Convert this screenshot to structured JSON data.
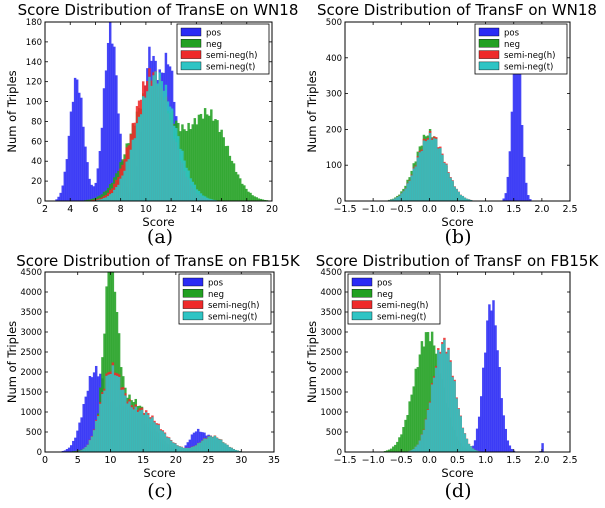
{
  "colors": {
    "pos": "#2b2bf5",
    "neg": "#22a022",
    "semi_neg_h": "#ee2a2a",
    "semi_neg_t": "#2ec4c4"
  },
  "chart_data": [
    {
      "type": "histogram",
      "title": "Score Distribution of TransE on WN18",
      "caption": "(a)",
      "xlabel": "Score",
      "ylabel": "Num of Triples",
      "xlim": [
        2,
        20
      ],
      "ylim": [
        0,
        180
      ],
      "xticks": [
        "2",
        "4",
        "6",
        "8",
        "10",
        "12",
        "14",
        "16",
        "18",
        "20"
      ],
      "yticks": [
        "0",
        "20",
        "40",
        "60",
        "80",
        "100",
        "120",
        "140",
        "160",
        "180"
      ],
      "legend": "top-right",
      "series": [
        {
          "name": "pos",
          "color": "#2b2bf5",
          "peaks": [
            {
              "center": 4.5,
              "height": 122,
              "sd": 0.55
            },
            {
              "center": 7.2,
              "height": 172,
              "sd": 0.55
            },
            {
              "center": 10.3,
              "height": 142,
              "sd": 0.6
            },
            {
              "center": 11.8,
              "height": 135,
              "sd": 0.6
            }
          ]
        },
        {
          "name": "neg",
          "color": "#22a022",
          "peaks": [
            {
              "center": 10.5,
              "height": 112,
              "sd": 1.7
            },
            {
              "center": 15.0,
              "height": 85,
              "sd": 1.5
            }
          ]
        },
        {
          "name": "semi-neg(h)",
          "color": "#ee2a2a",
          "peaks": [
            {
              "center": 10.5,
              "height": 128,
              "sd": 1.5
            }
          ]
        },
        {
          "name": "semi-neg(t)",
          "color": "#2ec4c4",
          "peaks": [
            {
              "center": 10.8,
              "height": 126,
              "sd": 1.5
            }
          ]
        }
      ]
    },
    {
      "type": "histogram",
      "title": "Score Distribution of TransF on WN18",
      "caption": "(b)",
      "xlabel": "Score",
      "ylabel": "Num of Triples",
      "xlim": [
        -1.5,
        2.5
      ],
      "ylim": [
        0,
        500
      ],
      "xticks": [
        "−1.5",
        "−1.0",
        "−0.5",
        "0.0",
        "0.5",
        "1.0",
        "1.5",
        "2.0",
        "2.5"
      ],
      "yticks": [
        "0",
        "100",
        "200",
        "300",
        "400",
        "500"
      ],
      "legend": "top-right",
      "series": [
        {
          "name": "pos",
          "color": "#2b2bf5",
          "peaks": [
            {
              "center": 1.55,
              "height": 460,
              "sd": 0.08
            }
          ]
        },
        {
          "name": "neg",
          "color": "#22a022",
          "peaks": [
            {
              "center": 0.0,
              "height": 190,
              "sd": 0.25
            }
          ]
        },
        {
          "name": "semi-neg(h)",
          "color": "#ee2a2a",
          "peaks": [
            {
              "center": 0.02,
              "height": 185,
              "sd": 0.25
            }
          ]
        },
        {
          "name": "semi-neg(t)",
          "color": "#2ec4c4",
          "peaks": [
            {
              "center": 0.02,
              "height": 180,
              "sd": 0.25
            }
          ]
        }
      ]
    },
    {
      "type": "histogram",
      "title": "Score Distribution of TransE on FB15K",
      "caption": "(c)",
      "xlabel": "Score",
      "ylabel": "Num of Triples",
      "xlim": [
        0,
        35
      ],
      "ylim": [
        0,
        4500
      ],
      "xticks": [
        "0",
        "5",
        "10",
        "15",
        "20",
        "25",
        "30",
        "35"
      ],
      "yticks": [
        "0",
        "500",
        "1000",
        "1500",
        "2000",
        "2500",
        "3000",
        "3500",
        "4000",
        "4500"
      ],
      "legend": "top-right",
      "series": [
        {
          "name": "pos",
          "color": "#2b2bf5",
          "peaks": [
            {
              "center": 7.5,
              "height": 1750,
              "sd": 1.6
            },
            {
              "center": 12.5,
              "height": 1100,
              "sd": 3.0
            },
            {
              "center": 23.0,
              "height": 380,
              "sd": 1.0
            },
            {
              "center": 25.5,
              "height": 380,
              "sd": 1.8
            }
          ]
        },
        {
          "name": "neg",
          "color": "#22a022",
          "peaks": [
            {
              "center": 10.0,
              "height": 4000,
              "sd": 1.0
            },
            {
              "center": 13.0,
              "height": 1300,
              "sd": 3.0
            },
            {
              "center": 25.5,
              "height": 400,
              "sd": 1.8
            }
          ]
        },
        {
          "name": "semi-neg(h)",
          "color": "#ee2a2a",
          "peaks": [
            {
              "center": 10.0,
              "height": 1750,
              "sd": 1.6
            },
            {
              "center": 14.5,
              "height": 1050,
              "sd": 3.0
            },
            {
              "center": 25.5,
              "height": 400,
              "sd": 1.8
            }
          ]
        },
        {
          "name": "semi-neg(t)",
          "color": "#2ec4c4",
          "peaks": [
            {
              "center": 10.0,
              "height": 1700,
              "sd": 1.6
            },
            {
              "center": 14.5,
              "height": 1000,
              "sd": 3.0
            },
            {
              "center": 25.5,
              "height": 390,
              "sd": 1.8
            }
          ]
        }
      ]
    },
    {
      "type": "histogram",
      "title": "Score Distribution of TransF on FB15K",
      "caption": "(d)",
      "xlabel": "Score",
      "ylabel": "Num of Triples",
      "xlim": [
        -1.5,
        2.5
      ],
      "ylim": [
        0,
        4500
      ],
      "xticks": [
        "−1.5",
        "−1.0",
        "−0.5",
        "0.0",
        "0.5",
        "1.0",
        "1.5",
        "2.0",
        "2.5"
      ],
      "yticks": [
        "0",
        "500",
        "1000",
        "1500",
        "2000",
        "2500",
        "3000",
        "3500",
        "4000",
        "4500"
      ],
      "legend": "top-left",
      "series": [
        {
          "name": "pos",
          "color": "#2b2bf5",
          "peaks": [
            {
              "center": 1.1,
              "height": 3750,
              "sd": 0.13
            },
            {
              "center": 2.0,
              "height": 300,
              "sd": 0.012
            }
          ]
        },
        {
          "name": "neg",
          "color": "#22a022",
          "peaks": [
            {
              "center": -0.02,
              "height": 2950,
              "sd": 0.25
            }
          ]
        },
        {
          "name": "semi-neg(h)",
          "color": "#ee2a2a",
          "peaks": [
            {
              "center": 0.25,
              "height": 2750,
              "sd": 0.2
            }
          ]
        },
        {
          "name": "semi-neg(t)",
          "color": "#2ec4c4",
          "peaks": [
            {
              "center": 0.25,
              "height": 2700,
              "sd": 0.2
            }
          ]
        }
      ]
    }
  ]
}
